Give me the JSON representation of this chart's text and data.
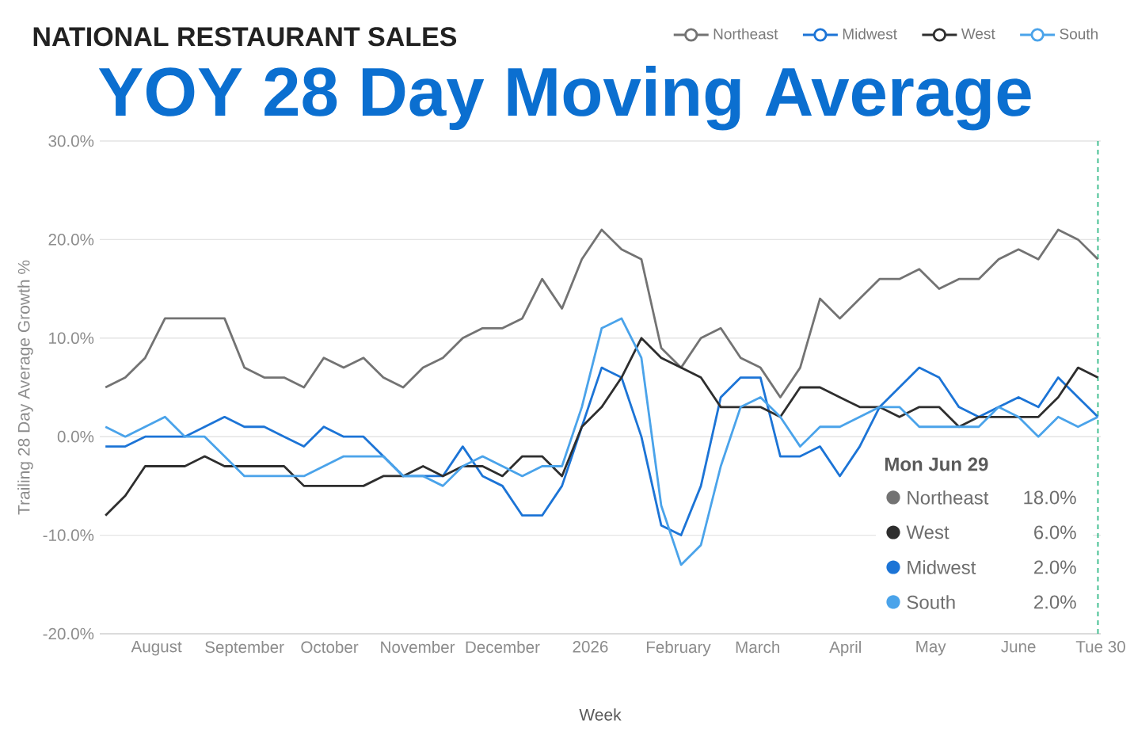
{
  "chart_data": {
    "type": "line",
    "title": "NATIONAL RESTAURANT SALES",
    "subtitle": "YOY 28 Day Moving Average",
    "xlabel": "Week",
    "ylabel": "Trailing 28 Day Average Growth %",
    "x": [
      "2025-07-14",
      "2025-07-21",
      "2025-07-28",
      "2025-08-04",
      "2025-08-11",
      "2025-08-18",
      "2025-08-25",
      "2025-09-01",
      "2025-09-08",
      "2025-09-15",
      "2025-09-22",
      "2025-09-29",
      "2025-10-06",
      "2025-10-13",
      "2025-10-20",
      "2025-10-27",
      "2025-11-03",
      "2025-11-10",
      "2025-11-17",
      "2025-11-24",
      "2025-12-01",
      "2025-12-08",
      "2025-12-15",
      "2025-12-22",
      "2025-12-29",
      "2026-01-05",
      "2026-01-12",
      "2026-01-19",
      "2026-01-26",
      "2026-02-02",
      "2026-02-09",
      "2026-02-16",
      "2026-02-23",
      "2026-03-02",
      "2026-03-09",
      "2026-03-16",
      "2026-03-23",
      "2026-03-30",
      "2026-04-06",
      "2026-04-13",
      "2026-04-20",
      "2026-04-27",
      "2026-05-04",
      "2026-05-11",
      "2026-05-18",
      "2026-05-25",
      "2026-06-01",
      "2026-06-08",
      "2026-06-15",
      "2026-06-22",
      "2026-06-29"
    ],
    "series": [
      {
        "name": "Northeast",
        "color": "#737373",
        "values": [
          5,
          6,
          8,
          12,
          12,
          12,
          12,
          7,
          6,
          6,
          5,
          8,
          7,
          8,
          6,
          5,
          7,
          8,
          10,
          11,
          11,
          12,
          16,
          13,
          18,
          21,
          19,
          18,
          9,
          7,
          10,
          11,
          8,
          7,
          4,
          7,
          14,
          12,
          14,
          16,
          16,
          17,
          15,
          16,
          16,
          18,
          19,
          18,
          21,
          20,
          18
        ]
      },
      {
        "name": "Midwest",
        "color": "#1c74d6",
        "values": [
          -1,
          -1,
          0,
          0,
          0,
          1,
          2,
          1,
          1,
          0,
          -1,
          1,
          0,
          0,
          -2,
          -4,
          -4,
          -4,
          -1,
          -4,
          -5,
          -8,
          -8,
          -5,
          1,
          7,
          6,
          0,
          -9,
          -10,
          -5,
          4,
          6,
          6,
          -2,
          -2,
          -1,
          -4,
          -1,
          3,
          5,
          7,
          6,
          3,
          2,
          3,
          4,
          3,
          6,
          4,
          2
        ]
      },
      {
        "name": "West",
        "color": "#2e2e2e",
        "values": [
          -8,
          -6,
          -3,
          -3,
          -3,
          -2,
          -3,
          -3,
          -3,
          -3,
          -5,
          -5,
          -5,
          -5,
          -4,
          -4,
          -3,
          -4,
          -3,
          -3,
          -4,
          -2,
          -2,
          -4,
          1,
          3,
          6,
          10,
          8,
          7,
          6,
          3,
          3,
          3,
          2,
          5,
          5,
          4,
          3,
          3,
          2,
          3,
          3,
          1,
          2,
          2,
          2,
          2,
          4,
          7,
          6
        ]
      },
      {
        "name": "South",
        "color": "#4aa3ea",
        "values": [
          1,
          0,
          1,
          2,
          0,
          0,
          -2,
          -4,
          -4,
          -4,
          -4,
          -3,
          -2,
          -2,
          -2,
          -4,
          -4,
          -5,
          -3,
          -2,
          -3,
          -4,
          -3,
          -3,
          3,
          11,
          12,
          8,
          -7,
          -13,
          -11,
          -3,
          3,
          4,
          2,
          -1,
          1,
          1,
          2,
          3,
          3,
          1,
          1,
          1,
          1,
          3,
          2,
          0,
          2,
          1,
          2
        ]
      }
    ],
    "xlim": [
      "2025-07-12",
      "2026-06-30"
    ],
    "xticks": [
      {
        "value": "2025-08-01",
        "label": "August"
      },
      {
        "value": "2025-09-01",
        "label": "September"
      },
      {
        "value": "2025-10-01",
        "label": "October"
      },
      {
        "value": "2025-11-01",
        "label": "November"
      },
      {
        "value": "2025-12-01",
        "label": "December"
      },
      {
        "value": "2026-01-01",
        "label": "2026"
      },
      {
        "value": "2026-02-01",
        "label": "February"
      },
      {
        "value": "2026-03-01",
        "label": "March"
      },
      {
        "value": "2026-04-01",
        "label": "April"
      },
      {
        "value": "2026-05-01",
        "label": "May"
      },
      {
        "value": "2026-06-01",
        "label": "June"
      },
      {
        "value": "2026-06-30",
        "label": "Tue 30"
      }
    ],
    "ylim": [
      -20,
      30
    ],
    "yticks": [
      {
        "value": -20,
        "label": "-20.0%"
      },
      {
        "value": -10,
        "label": "-10.0%"
      },
      {
        "value": 0,
        "label": "0.0%"
      },
      {
        "value": 10,
        "label": "10.0%"
      },
      {
        "value": 20,
        "label": "20.0%"
      },
      {
        "value": 30,
        "label": "30.0%"
      }
    ],
    "ref_lines": [
      {
        "axis": "x",
        "value": "2026-06-29",
        "color": "#3dbd8e",
        "line_style": "dashed"
      }
    ],
    "annotations": [
      "Mon Jun 29",
      "Northeast",
      "18.0%",
      "West",
      "6.0%",
      "Midwest",
      "2.0%",
      "South",
      "2.0%"
    ],
    "grid": "y",
    "legend": "top right"
  }
}
